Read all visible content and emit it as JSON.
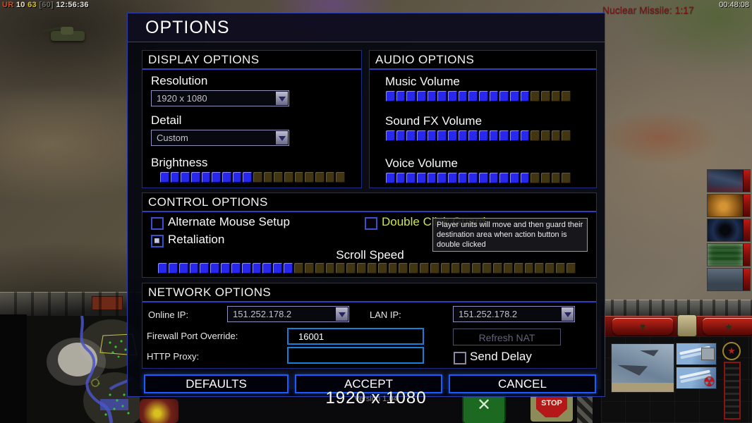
{
  "hud": {
    "score": {
      "tag": "UR",
      "v1": "10",
      "v2": "63",
      "v3": "[60]",
      "time": "12:56:36"
    },
    "clock": "00:48:08",
    "superweapon_timer": "Nuclear Missile: 1:17",
    "resolution_overlay": "1920 x 1080",
    "version": "Version 1.04",
    "icons": {
      "command_arrow": "▼",
      "command_star": "★",
      "radiation": "☢",
      "cancel_x": "✕",
      "stop": "STOP"
    }
  },
  "dialog": {
    "title": "OPTIONS",
    "display": {
      "header": "DISPLAY OPTIONS",
      "resolution_label": "Resolution",
      "resolution_value": "1920 x 1080",
      "detail_label": "Detail",
      "detail_value": "Custom",
      "brightness_label": "Brightness",
      "brightness_slider": {
        "filled": 9,
        "total": 18
      }
    },
    "audio": {
      "header": "AUDIO OPTIONS",
      "sliders": [
        {
          "label": "Music Volume",
          "filled": 14,
          "total": 18
        },
        {
          "label": "Sound FX Volume",
          "filled": 14,
          "total": 18
        },
        {
          "label": "Voice Volume",
          "filled": 14,
          "total": 18
        }
      ]
    },
    "control": {
      "header": "CONTROL OPTIONS",
      "checkboxes": [
        {
          "label": "Alternate Mouse Setup",
          "checked": false
        },
        {
          "label": "Retaliation",
          "checked": true
        },
        {
          "label": "Double Click Guard",
          "checked": false
        }
      ],
      "scroll_label": "Scroll Speed",
      "scroll_slider": {
        "filled": 13,
        "total": 40
      },
      "tooltip": "Player units will move and then guard their destination area when action button is double clicked"
    },
    "network": {
      "header": "NETWORK OPTIONS",
      "online_ip_label": "Online IP:",
      "online_ip_value": "151.252.178.2",
      "lan_ip_label": "LAN IP:",
      "lan_ip_value": "151.252.178.2",
      "firewall_label": "Firewall Port Override:",
      "firewall_value": "16001",
      "http_proxy_label": "HTTP Proxy:",
      "http_proxy_value": "",
      "refresh_nat_label": "Refresh NAT",
      "send_delay_label": "Send Delay"
    },
    "buttons": {
      "defaults": "DEFAULTS",
      "accept": "ACCEPT",
      "cancel": "CANCEL"
    }
  },
  "colors": {
    "accent_blue": "#1b5cff",
    "slider_fill": "#2828ec",
    "slider_empty": "#423612",
    "highlight_option": "#cfe44c",
    "timer_red": "#7c1616"
  }
}
